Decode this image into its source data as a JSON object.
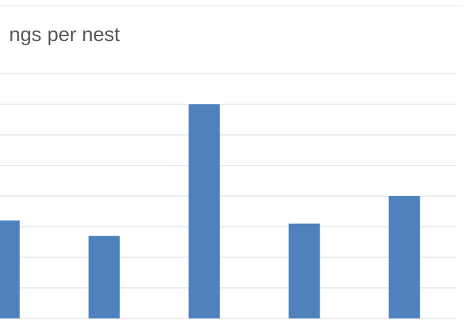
{
  "chart_data": {
    "type": "bar",
    "title": "ngs per nest",
    "categories": [
      "",
      "",
      "",
      "",
      ""
    ],
    "values": [
      3.2,
      2.7,
      7.0,
      3.1,
      4.0
    ],
    "ylim": [
      0,
      8
    ],
    "grid": true,
    "colors": {
      "bar": "#4f81bd",
      "grid": "#d9d9d9",
      "title": "#595959"
    }
  }
}
